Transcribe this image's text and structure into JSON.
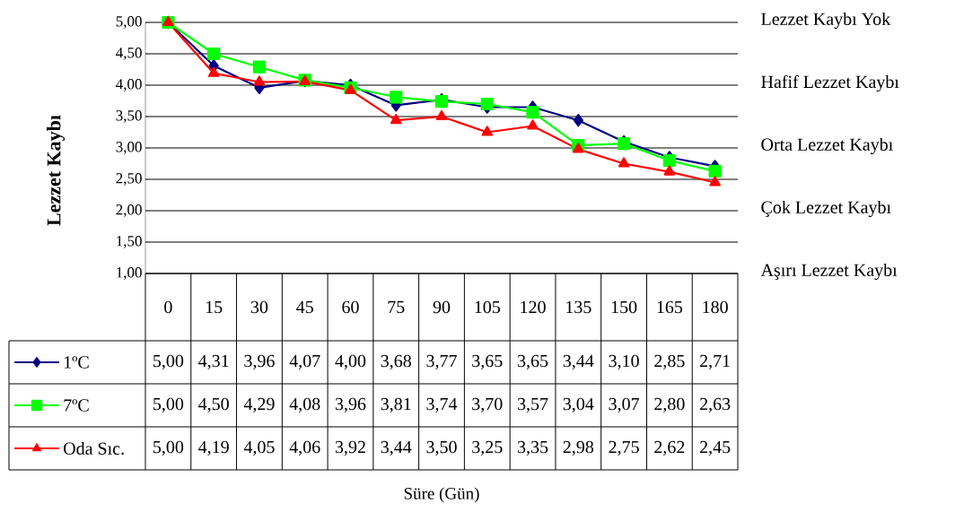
{
  "chart_data": {
    "type": "line",
    "ylabel": "Lezzet Kaybı",
    "categories": [
      "0",
      "15",
      "30",
      "45",
      "60",
      "75",
      "90",
      "105",
      "120",
      "135",
      "150",
      "165",
      "180"
    ],
    "series": [
      {
        "name": "1ºC",
        "color": "#000080",
        "marker": "diamond",
        "values": [
          5.0,
          4.31,
          3.96,
          4.07,
          4.0,
          3.68,
          3.77,
          3.65,
          3.65,
          3.44,
          3.1,
          2.85,
          2.71
        ],
        "value_labels": [
          "5,00",
          "4,31",
          "3,96",
          "4,07",
          "4,00",
          "3,68",
          "3,77",
          "3,65",
          "3,65",
          "3,44",
          "3,10",
          "2,85",
          "2,71"
        ]
      },
      {
        "name": "7ºC",
        "color": "#00ff00",
        "marker": "square",
        "values": [
          5.0,
          4.5,
          4.29,
          4.08,
          3.96,
          3.81,
          3.74,
          3.7,
          3.57,
          3.04,
          3.07,
          2.8,
          2.63
        ],
        "value_labels": [
          "5,00",
          "4,50",
          "4,29",
          "4,08",
          "3,96",
          "3,81",
          "3,74",
          "3,70",
          "3,57",
          "3,04",
          "3,07",
          "2,80",
          "2,63"
        ]
      },
      {
        "name": "Oda Sıc.",
        "color": "#ff0000",
        "marker": "triangle",
        "values": [
          5.0,
          4.19,
          4.05,
          4.06,
          3.92,
          3.44,
          3.5,
          3.25,
          3.35,
          2.98,
          2.75,
          2.62,
          2.45
        ],
        "value_labels": [
          "5,00",
          "4,19",
          "4,05",
          "4,06",
          "3,92",
          "3,44",
          "3,50",
          "3,25",
          "3,35",
          "2,98",
          "2,75",
          "2,62",
          "2,45"
        ]
      }
    ],
    "ylim": [
      1,
      5
    ],
    "yticks": [
      {
        "value": 1,
        "label": "1,00"
      },
      {
        "value": 1.5,
        "label": "1,50"
      },
      {
        "value": 2,
        "label": "2,00"
      },
      {
        "value": 2.5,
        "label": "2,50"
      },
      {
        "value": 3,
        "label": "3,00"
      },
      {
        "value": 3.5,
        "label": "3,50"
      },
      {
        "value": 4,
        "label": "4,00"
      },
      {
        "value": 4.5,
        "label": "4,50"
      },
      {
        "value": 5,
        "label": "5,00"
      }
    ],
    "annotations": [
      "Lezzet Kaybı Yok",
      "Hafif Lezzet Kaybı",
      "Orta Lezzet Kaybı",
      "Çok Lezzet Kaybı",
      "Aşırı Lezzet Kaybı",
      "Süre (Gün)"
    ],
    "grid": "y",
    "legend": "bottom"
  }
}
